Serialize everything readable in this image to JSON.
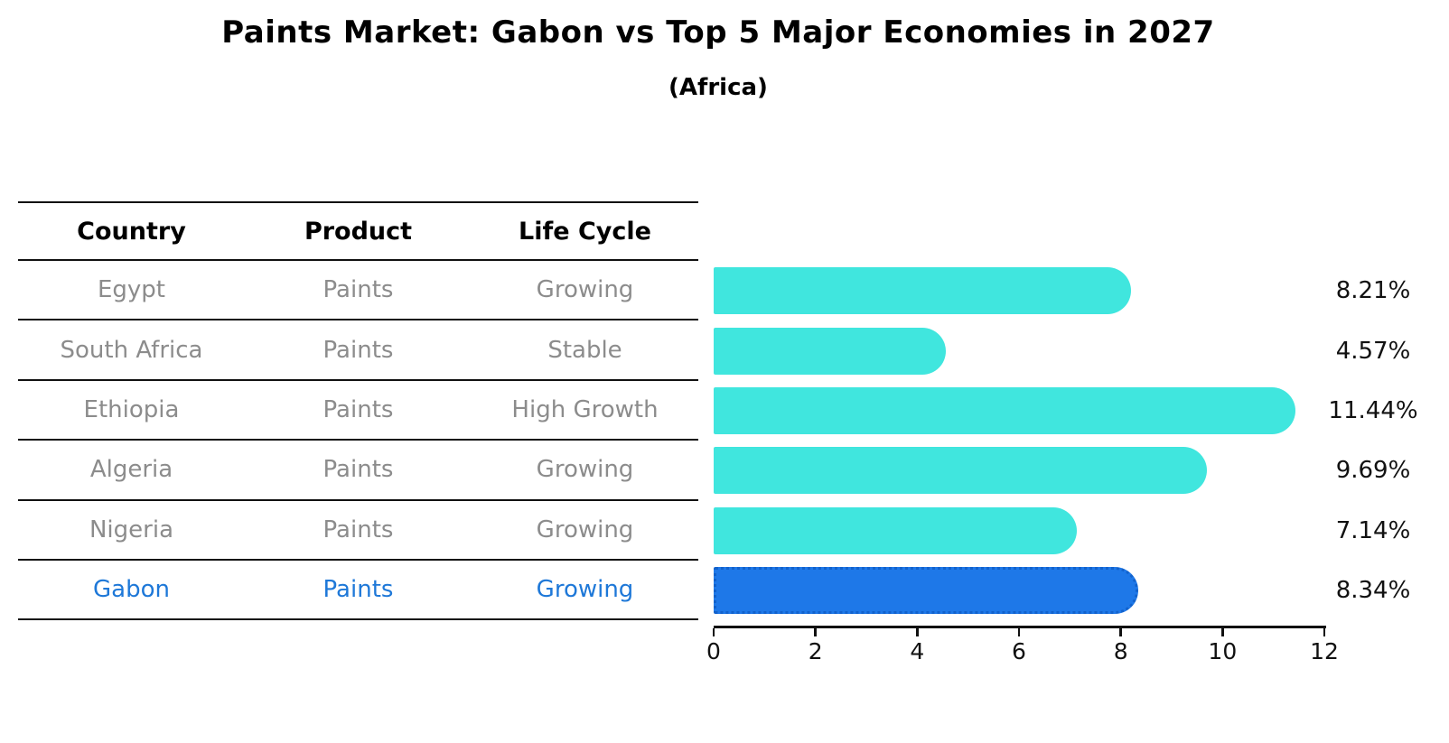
{
  "title": "Paints Market: Gabon vs Top 5 Major Economies in 2027",
  "subtitle": "(Africa)",
  "table": {
    "headers": [
      "Country",
      "Product",
      "Life Cycle"
    ],
    "rows": [
      {
        "country": "Egypt",
        "product": "Paints",
        "life_cycle": "Growing",
        "highlight": false
      },
      {
        "country": "South Africa",
        "product": "Paints",
        "life_cycle": "Stable",
        "highlight": false
      },
      {
        "country": "Ethiopia",
        "product": "Paints",
        "life_cycle": "High Growth",
        "highlight": false
      },
      {
        "country": "Algeria",
        "product": "Paints",
        "life_cycle": "Growing",
        "highlight": false
      },
      {
        "country": "Nigeria",
        "product": "Paints",
        "life_cycle": "Growing",
        "highlight": false
      },
      {
        "country": "Gabon",
        "product": "Paints",
        "life_cycle": "Growing",
        "highlight": true
      }
    ]
  },
  "chart_data": {
    "type": "bar",
    "orientation": "horizontal",
    "title": "Paints Market: Gabon vs Top 5 Major Economies in 2027",
    "subtitle": "(Africa)",
    "categories": [
      "Egypt",
      "South Africa",
      "Ethiopia",
      "Algeria",
      "Nigeria",
      "Gabon"
    ],
    "values": [
      8.21,
      4.57,
      11.44,
      9.69,
      7.14,
      8.34
    ],
    "value_labels": [
      "8.21%",
      "4.57%",
      "11.44%",
      "9.69%",
      "7.14%",
      "8.34%"
    ],
    "xlim": [
      0,
      12
    ],
    "x_ticks": [
      "0",
      "2",
      "4",
      "6",
      "8",
      "10",
      "12"
    ],
    "highlight_index": 5,
    "grid": false,
    "legend": "none"
  },
  "colors": {
    "bar": "#40e6de",
    "highlight_bar": "#1e78e8",
    "highlight_border": "#1262cc",
    "highlight_text": "#1e78d8",
    "row_text": "#8c8c8c",
    "axis": "#111111"
  }
}
